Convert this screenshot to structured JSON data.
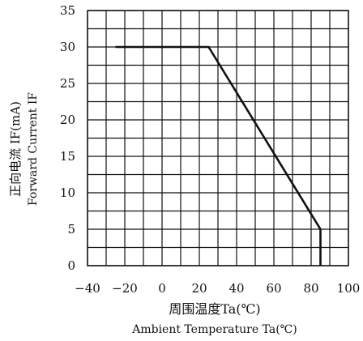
{
  "chart_data": {
    "type": "line",
    "xlabel_cn": "周围温度Ta(℃)",
    "xlabel_en": "Ambient Temperature Ta(℃)",
    "ylabel_cn": "正向电流 IF(mA)",
    "ylabel_en": "Forward Current IF",
    "x_ticks": [
      "−40",
      "−20",
      "0",
      "20",
      "40",
      "60",
      "80",
      "100"
    ],
    "y_ticks": [
      "0",
      "5",
      "10",
      "15",
      "20",
      "25",
      "30",
      "35"
    ],
    "xlim": [
      -40,
      100
    ],
    "ylim": [
      0,
      35
    ],
    "grid": true,
    "x_minor_step": 10,
    "y_minor_step": 2.5,
    "series": [
      {
        "x": [
          -25,
          25,
          85,
          85
        ],
        "y": [
          30,
          30,
          5,
          0
        ],
        "color": "#111111"
      }
    ]
  }
}
